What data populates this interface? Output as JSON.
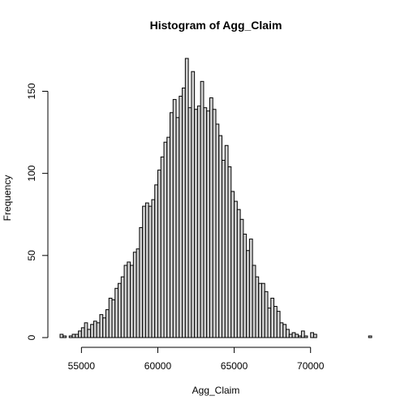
{
  "chart_data": {
    "type": "bar",
    "title": "Histogram of Agg_Claim",
    "xlabel": "Agg_Claim",
    "ylabel": "Frequency",
    "bin_width": 200,
    "bin_start": 53600,
    "xlim": [
      53600,
      74000
    ],
    "ylim": [
      0,
      170
    ],
    "x_ticks": [
      55000,
      60000,
      65000,
      70000
    ],
    "x_tick_labels": [
      "55000",
      "60000",
      "65000",
      "70000"
    ],
    "y_ticks": [
      0,
      50,
      100,
      150
    ],
    "y_tick_labels": [
      "0",
      "50",
      "100",
      "150"
    ],
    "values": [
      2,
      1,
      0,
      1,
      2,
      2,
      4,
      6,
      9,
      5,
      8,
      10,
      9,
      14,
      12,
      17,
      24,
      23,
      30,
      33,
      37,
      44,
      46,
      44,
      52,
      54,
      67,
      80,
      82,
      80,
      84,
      93,
      102,
      110,
      119,
      122,
      137,
      145,
      134,
      147,
      152,
      170,
      140,
      162,
      139,
      141,
      156,
      140,
      138,
      146,
      139,
      130,
      123,
      108,
      117,
      104,
      89,
      83,
      78,
      72,
      63,
      53,
      60,
      44,
      37,
      33,
      33,
      28,
      18,
      24,
      19,
      16,
      9,
      8,
      5,
      2,
      3,
      2,
      1,
      4,
      1,
      0,
      3,
      2,
      0,
      0,
      0,
      0,
      0,
      0,
      0,
      0,
      0,
      0,
      0,
      0,
      0,
      0,
      0,
      0,
      0,
      1
    ],
    "bar_color": "#d3d3d3",
    "bar_stroke": "#000000",
    "grid": false
  }
}
